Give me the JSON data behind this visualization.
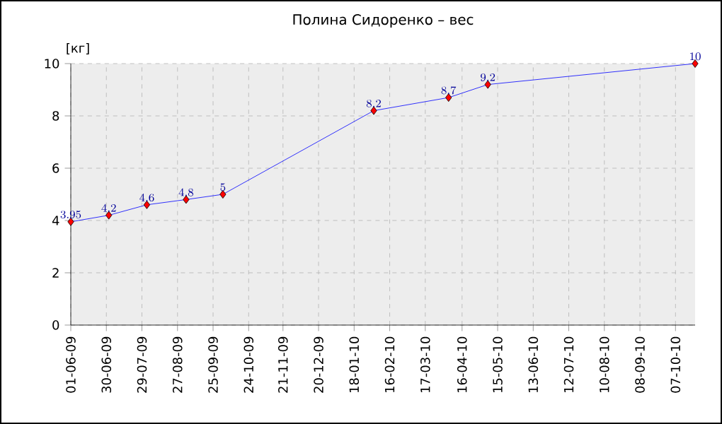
{
  "chart_data": {
    "type": "line",
    "title": "Полина Сидоренко – вес",
    "ylabel": "[кг]",
    "x": [
      "2009-06-01",
      "2009-07-02",
      "2009-08-02",
      "2009-09-03",
      "2009-10-03",
      "2010-02-03",
      "2010-04-05",
      "2010-05-07",
      "2010-10-23"
    ],
    "series": [
      {
        "color": "#0000ff",
        "values": [
          3.95,
          4.2,
          4.6,
          4.8,
          5,
          8.2,
          8.7,
          9.2,
          10
        ]
      }
    ],
    "xlim": [
      "2009-06-01",
      "2010-10-23"
    ],
    "xticks": [
      {
        "value": "2009-06-01",
        "label": "01-06-09"
      },
      {
        "value": "2009-06-30",
        "label": "30-06-09"
      },
      {
        "value": "2009-07-29",
        "label": "29-07-09"
      },
      {
        "value": "2009-08-27",
        "label": "27-08-09"
      },
      {
        "value": "2009-09-25",
        "label": "25-09-09"
      },
      {
        "value": "2009-10-24",
        "label": "24-10-09"
      },
      {
        "value": "2009-11-21",
        "label": "21-11-09"
      },
      {
        "value": "2009-12-20",
        "label": "20-12-09"
      },
      {
        "value": "2010-01-18",
        "label": "18-01-10"
      },
      {
        "value": "2010-02-16",
        "label": "16-02-10"
      },
      {
        "value": "2010-03-17",
        "label": "17-03-10"
      },
      {
        "value": "2010-04-16",
        "label": "16-04-10"
      },
      {
        "value": "2010-05-15",
        "label": "15-05-10"
      },
      {
        "value": "2010-06-13",
        "label": "13-06-10"
      },
      {
        "value": "2010-07-12",
        "label": "12-07-10"
      },
      {
        "value": "2010-08-10",
        "label": "10-08-10"
      },
      {
        "value": "2010-09-08",
        "label": "08-09-10"
      },
      {
        "value": "2010-10-07",
        "label": "07-10-10"
      }
    ],
    "ylim": [
      0,
      10
    ],
    "yticks": [
      0,
      2,
      4,
      6,
      8,
      10
    ],
    "grid": true,
    "marker": "diamond",
    "line_style": "solid",
    "data_labels": true
  }
}
